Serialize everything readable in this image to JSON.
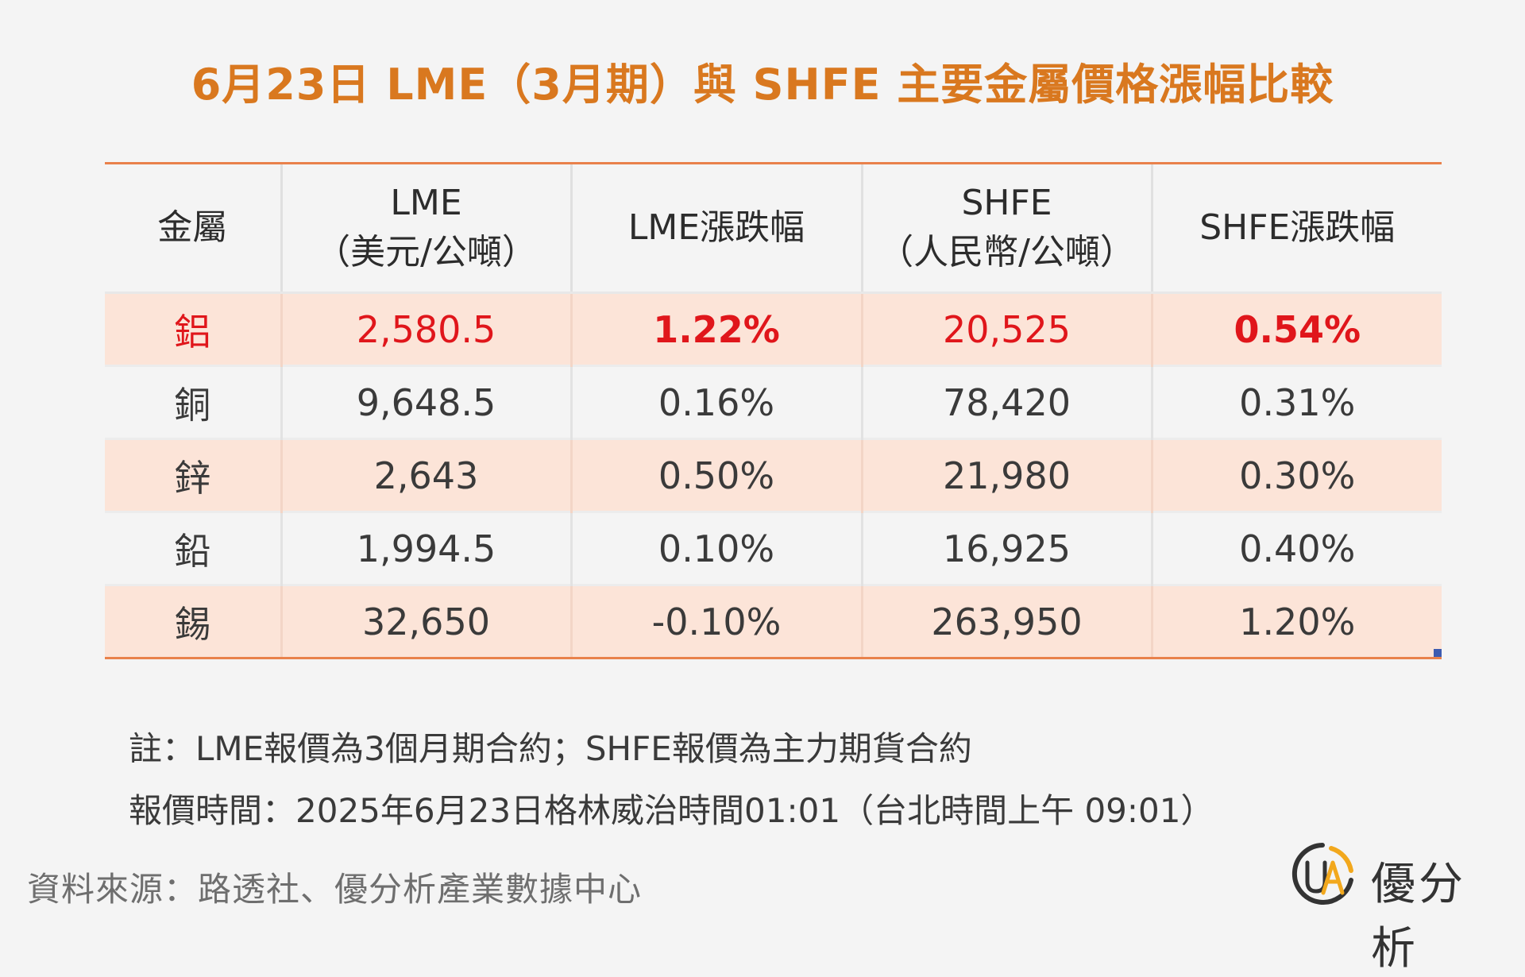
{
  "title": "6月23日 LME（3月期）與 SHFE 主要金屬價格漲幅比較",
  "chart_data": {
    "type": "table",
    "title": "6月23日 LME（3月期）與 SHFE 主要金屬價格漲幅比較",
    "columns": [
      {
        "line1": "金屬",
        "line2": ""
      },
      {
        "line1": "LME",
        "line2": "（美元/公噸）"
      },
      {
        "line1": "LME漲跌幅",
        "line2": ""
      },
      {
        "line1": "SHFE",
        "line2": "（人民幣/公噸）"
      },
      {
        "line1": "SHFE漲跌幅",
        "line2": ""
      }
    ],
    "rows": [
      {
        "metal": "鋁",
        "lme": "2,580.5",
        "lme_change": "1.22%",
        "shfe": "20,525",
        "shfe_change": "0.54%"
      },
      {
        "metal": "銅",
        "lme": "9,648.5",
        "lme_change": "0.16%",
        "shfe": "78,420",
        "shfe_change": "0.31%"
      },
      {
        "metal": "鋅",
        "lme": "2,643",
        "lme_change": "0.50%",
        "shfe": "21,980",
        "shfe_change": "0.30%"
      },
      {
        "metal": "鉛",
        "lme": "1,994.5",
        "lme_change": "0.10%",
        "shfe": "16,925",
        "shfe_change": "0.40%"
      },
      {
        "metal": "錫",
        "lme": "32,650",
        "lme_change": "-0.10%",
        "shfe": "263,950",
        "shfe_change": "1.20%"
      }
    ],
    "highlight_row": 0
  },
  "notes": [
    "註：LME報價為3個月期合約；SHFE報價為主力期貨合約",
    "報價時間：2025年6月23日格林威治時間01:01（台北時間上午 09:01）"
  ],
  "source": "資料來源：路透社、優分析產業數據中心",
  "logo": {
    "mark_text": "UA",
    "text": "優分析"
  },
  "colors": {
    "title": "#d9781f",
    "rule": "#e9814b",
    "shaded_row": "#fce4d8",
    "highlight_text": "#e0161b",
    "logo_ring": "#333333",
    "logo_accent": "#f2a81d"
  }
}
